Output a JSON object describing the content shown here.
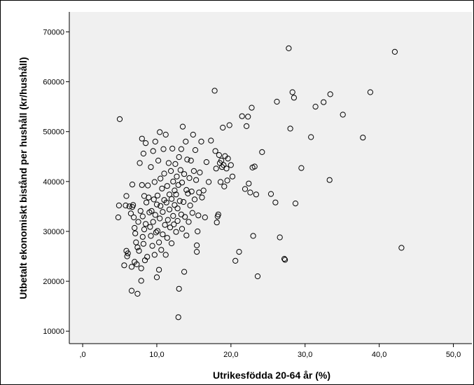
{
  "chart_data": {
    "type": "scatter",
    "title": "",
    "xlabel": "Utrikesfödda 20-64 år (%)",
    "ylabel": "Utbetalt ekonomiskt bistånd per hushåll (kr/hushåll)",
    "xlim": [
      -1.8,
      52.5
    ],
    "ylim": [
      7500,
      74000
    ],
    "x_ticks": [
      0,
      10,
      20,
      30,
      40,
      50
    ],
    "x_tick_labels": [
      ",0",
      "10,0",
      "20,0",
      "30,0",
      "40,0",
      "50,0"
    ],
    "y_ticks": [
      10000,
      20000,
      30000,
      40000,
      50000,
      60000,
      70000
    ],
    "y_tick_labels": [
      "10000",
      "20000",
      "30000",
      "40000",
      "50000",
      "60000",
      "70000"
    ],
    "grid": false,
    "legend": "none",
    "colors": {
      "plot_bg": "#f0f0f0",
      "marker_stroke": "#000000",
      "frame": "#000000"
    },
    "points": [
      [
        5.0,
        52500
      ],
      [
        4.9,
        35200
      ],
      [
        4.8,
        32800
      ],
      [
        5.8,
        35200
      ],
      [
        5.9,
        37100
      ],
      [
        5.6,
        23200
      ],
      [
        5.9,
        26100
      ],
      [
        6.0,
        25000
      ],
      [
        6.1,
        25600
      ],
      [
        6.3,
        35000
      ],
      [
        6.5,
        33600
      ],
      [
        6.7,
        34900
      ],
      [
        6.6,
        22900
      ],
      [
        6.6,
        18100
      ],
      [
        6.8,
        35300
      ],
      [
        6.7,
        39400
      ],
      [
        6.9,
        32800
      ],
      [
        7.0,
        30700
      ],
      [
        7.0,
        23900
      ],
      [
        7.1,
        29600
      ],
      [
        7.2,
        27800
      ],
      [
        7.3,
        23400
      ],
      [
        7.4,
        26800
      ],
      [
        7.4,
        17500
      ],
      [
        7.5,
        31900
      ],
      [
        7.6,
        26100
      ],
      [
        7.7,
        43700
      ],
      [
        7.8,
        34100
      ],
      [
        7.9,
        22600
      ],
      [
        7.9,
        20100
      ],
      [
        8.0,
        48600
      ],
      [
        8.0,
        39300
      ],
      [
        8.1,
        33000
      ],
      [
        8.1,
        28900
      ],
      [
        8.2,
        45600
      ],
      [
        8.2,
        27500
      ],
      [
        8.3,
        37100
      ],
      [
        8.3,
        30400
      ],
      [
        8.4,
        24200
      ],
      [
        8.5,
        47700
      ],
      [
        8.5,
        31500
      ],
      [
        8.6,
        35800
      ],
      [
        8.7,
        24900
      ],
      [
        8.8,
        39200
      ],
      [
        8.9,
        36800
      ],
      [
        9.0,
        33800
      ],
      [
        9.1,
        30900
      ],
      [
        9.2,
        42900
      ],
      [
        9.2,
        29100
      ],
      [
        9.3,
        34100
      ],
      [
        9.4,
        27100
      ],
      [
        9.5,
        46100
      ],
      [
        9.5,
        31900
      ],
      [
        9.6,
        36400
      ],
      [
        9.7,
        39900
      ],
      [
        9.7,
        25300
      ],
      [
        9.8,
        48000
      ],
      [
        9.8,
        33300
      ],
      [
        9.9,
        29800
      ],
      [
        10.0,
        20800
      ],
      [
        10.0,
        35400
      ],
      [
        10.1,
        37200
      ],
      [
        10.1,
        30100
      ],
      [
        10.2,
        44200
      ],
      [
        10.3,
        27800
      ],
      [
        10.3,
        22300
      ],
      [
        10.4,
        49900
      ],
      [
        10.4,
        32600
      ],
      [
        10.5,
        40600
      ],
      [
        10.5,
        35100
      ],
      [
        10.6,
        26300
      ],
      [
        10.7,
        38600
      ],
      [
        10.8,
        29400
      ],
      [
        10.8,
        33900
      ],
      [
        10.9,
        46500
      ],
      [
        11.0,
        36300
      ],
      [
        11.0,
        41600
      ],
      [
        11.1,
        31300
      ],
      [
        11.2,
        25300
      ],
      [
        11.2,
        49400
      ],
      [
        11.3,
        35800
      ],
      [
        11.4,
        39100
      ],
      [
        11.4,
        28700
      ],
      [
        11.5,
        32300
      ],
      [
        11.6,
        43700
      ],
      [
        11.7,
        34400
      ],
      [
        11.7,
        37400
      ],
      [
        11.8,
        30800
      ],
      [
        11.9,
        42100
      ],
      [
        12.0,
        36500
      ],
      [
        12.0,
        27600
      ],
      [
        12.1,
        46600
      ],
      [
        12.2,
        33100
      ],
      [
        12.2,
        40000
      ],
      [
        12.3,
        31400
      ],
      [
        12.4,
        35300
      ],
      [
        12.4,
        38200
      ],
      [
        12.5,
        43500
      ],
      [
        12.6,
        29900
      ],
      [
        12.6,
        37400
      ],
      [
        12.7,
        41000
      ],
      [
        12.8,
        34600
      ],
      [
        12.8,
        32100
      ],
      [
        12.9,
        39300
      ],
      [
        12.9,
        12800
      ],
      [
        13.0,
        44900
      ],
      [
        13.0,
        18500
      ],
      [
        13.1,
        36100
      ],
      [
        13.2,
        42300
      ],
      [
        13.3,
        33400
      ],
      [
        13.3,
        46500
      ],
      [
        13.4,
        39800
      ],
      [
        13.4,
        30500
      ],
      [
        13.5,
        51000
      ],
      [
        13.6,
        35900
      ],
      [
        13.7,
        41500
      ],
      [
        13.7,
        21900
      ],
      [
        13.8,
        32900
      ],
      [
        13.9,
        48000
      ],
      [
        14.0,
        38300
      ],
      [
        14.0,
        29200
      ],
      [
        14.1,
        44400
      ],
      [
        14.2,
        37600
      ],
      [
        14.3,
        31900
      ],
      [
        14.4,
        40700
      ],
      [
        14.5,
        35200
      ],
      [
        14.6,
        44200
      ],
      [
        14.7,
        38000
      ],
      [
        14.8,
        33700
      ],
      [
        14.9,
        49400
      ],
      [
        15.0,
        42100
      ],
      [
        15.1,
        36400
      ],
      [
        15.2,
        46300
      ],
      [
        15.3,
        40300
      ],
      [
        15.4,
        25900
      ],
      [
        15.4,
        27200
      ],
      [
        15.5,
        30000
      ],
      [
        15.6,
        33200
      ],
      [
        15.7,
        37800
      ],
      [
        15.8,
        41800
      ],
      [
        16.0,
        48000
      ],
      [
        16.1,
        36800
      ],
      [
        16.3,
        38200
      ],
      [
        16.5,
        32800
      ],
      [
        16.7,
        43900
      ],
      [
        17.0,
        39900
      ],
      [
        17.3,
        48200
      ],
      [
        17.8,
        58200
      ],
      [
        17.9,
        46100
      ],
      [
        18.0,
        42600
      ],
      [
        18.1,
        31800
      ],
      [
        18.2,
        33000
      ],
      [
        18.3,
        33400
      ],
      [
        18.4,
        45300
      ],
      [
        18.5,
        43700
      ],
      [
        18.6,
        39900
      ],
      [
        18.7,
        44200
      ],
      [
        18.8,
        42900
      ],
      [
        18.9,
        50800
      ],
      [
        19.0,
        43300
      ],
      [
        19.1,
        39000
      ],
      [
        19.2,
        45100
      ],
      [
        19.4,
        42600
      ],
      [
        19.5,
        40200
      ],
      [
        19.6,
        44600
      ],
      [
        19.8,
        51300
      ],
      [
        20.0,
        43300
      ],
      [
        20.2,
        41000
      ],
      [
        20.6,
        24100
      ],
      [
        21.1,
        25900
      ],
      [
        21.5,
        53100
      ],
      [
        21.9,
        38500
      ],
      [
        22.1,
        51100
      ],
      [
        22.3,
        53000
      ],
      [
        22.4,
        39600
      ],
      [
        22.6,
        37800
      ],
      [
        22.8,
        54800
      ],
      [
        22.9,
        42800
      ],
      [
        23.0,
        29100
      ],
      [
        23.2,
        43000
      ],
      [
        23.4,
        37400
      ],
      [
        23.6,
        21000
      ],
      [
        24.2,
        45900
      ],
      [
        25.4,
        37500
      ],
      [
        26.0,
        35800
      ],
      [
        26.2,
        56000
      ],
      [
        26.6,
        28800
      ],
      [
        27.2,
        24500
      ],
      [
        27.3,
        24300
      ],
      [
        27.8,
        66700
      ],
      [
        28.0,
        50600
      ],
      [
        28.3,
        57900
      ],
      [
        28.5,
        56800
      ],
      [
        28.7,
        35600
      ],
      [
        29.5,
        42700
      ],
      [
        30.8,
        48900
      ],
      [
        31.4,
        55000
      ],
      [
        32.5,
        55900
      ],
      [
        33.4,
        57500
      ],
      [
        33.3,
        40300
      ],
      [
        35.1,
        53400
      ],
      [
        37.8,
        48800
      ],
      [
        38.8,
        57900
      ],
      [
        42.1,
        66000
      ],
      [
        43.0,
        26700
      ]
    ]
  }
}
